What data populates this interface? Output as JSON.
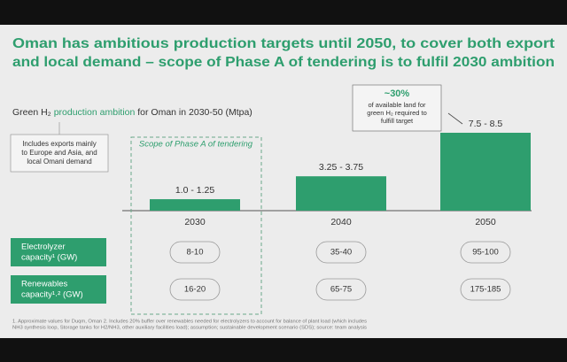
{
  "slide": {
    "title_lines": [
      "Oman has ambitious production targets until 2050, to cover both export",
      "and local demand – scope of Phase A of tendering is to fulfil 2030 ambition"
    ],
    "note_lines": [
      "Includes exports mainly",
      "to Europe and Asia, and",
      "local Omani demand"
    ],
    "scope_label": "Scope of Phase A of tendering",
    "callout": {
      "headline": "~30%",
      "lines": [
        "of available land for",
        "green H₂ required to",
        "fulfill target"
      ]
    },
    "rows": [
      {
        "label_lines": [
          "Electrolyzer",
          "capacity¹ (GW)"
        ],
        "values": [
          "8-10",
          "35-40",
          "95-100"
        ]
      },
      {
        "label_lines": [
          "Renewables",
          "capacity¹˒² (GW)"
        ],
        "values": [
          "16-20",
          "65-75",
          "175-185"
        ]
      }
    ],
    "footnote_lines": [
      "1. Approximate values for Duqm, Oman 2. Includes 20% buffer over renewables needed for electrolyzers to account for balance of plant load (which includes",
      "NH3 synthesis loop, Storage tanks for H2/NH3, other auxiliary facilities load); assumption; sustainable development scenario (SDS); source: team analysis"
    ]
  },
  "chart_data": {
    "type": "bar",
    "subtitle_parts": [
      "Green H₂ ",
      "production ambition",
      " for Oman in 2030-50 (Mtpa)"
    ],
    "categories": [
      "2030",
      "2040",
      "2050"
    ],
    "values": [
      1.25,
      3.75,
      8.5
    ],
    "value_labels": [
      "1.0 - 1.25",
      "3.25 - 3.75",
      "7.5 - 8.5"
    ],
    "color": "#2e9e6e"
  }
}
